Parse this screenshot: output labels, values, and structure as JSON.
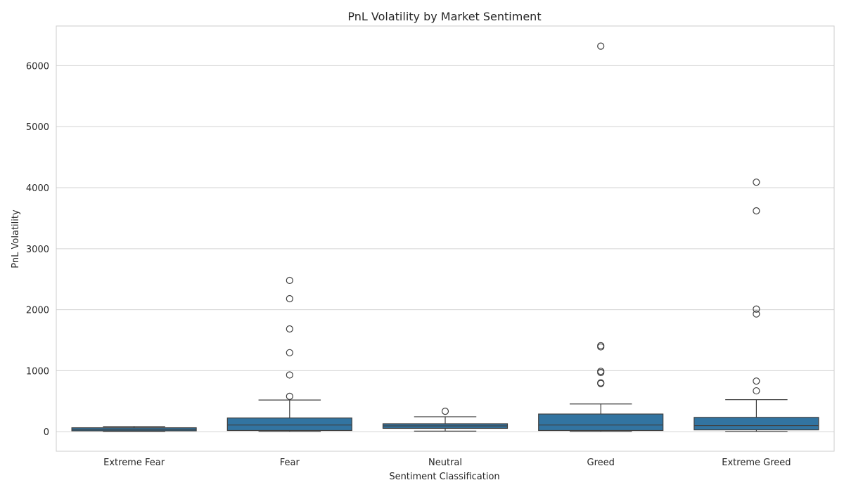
{
  "chart_data": {
    "type": "box",
    "title": "PnL Volatility by Market Sentiment",
    "xlabel": "Sentiment Classification",
    "ylabel": "PnL Volatility",
    "ylim": [
      -320,
      6650
    ],
    "yticks": [
      0,
      1000,
      2000,
      3000,
      4000,
      5000,
      6000
    ],
    "grid": true,
    "box_color": "#3274a1",
    "categories": [
      "Extreme Fear",
      "Fear",
      "Neutral",
      "Greed",
      "Extreme Greed"
    ],
    "boxes": [
      {
        "name": "Extreme Fear",
        "whisker_low": 5,
        "q1": 15,
        "median": 40,
        "q3": 65,
        "whisker_high": 85,
        "fliers": []
      },
      {
        "name": "Fear",
        "whisker_low": 5,
        "q1": 20,
        "median": 110,
        "q3": 225,
        "whisker_high": 520,
        "fliers": [
          580,
          930,
          1295,
          1685,
          2180,
          2480
        ]
      },
      {
        "name": "Neutral",
        "whisker_low": 10,
        "q1": 55,
        "median": 95,
        "q3": 130,
        "whisker_high": 245,
        "fliers": [
          335
        ]
      },
      {
        "name": "Greed",
        "whisker_low": 5,
        "q1": 20,
        "median": 110,
        "q3": 290,
        "whisker_high": 455,
        "fliers": [
          790,
          800,
          970,
          990,
          1390,
          1410,
          6320
        ]
      },
      {
        "name": "Extreme Greed",
        "whisker_low": 5,
        "q1": 30,
        "median": 100,
        "q3": 235,
        "whisker_high": 525,
        "fliers": [
          670,
          830,
          1930,
          2010,
          3620,
          4090
        ]
      }
    ]
  }
}
